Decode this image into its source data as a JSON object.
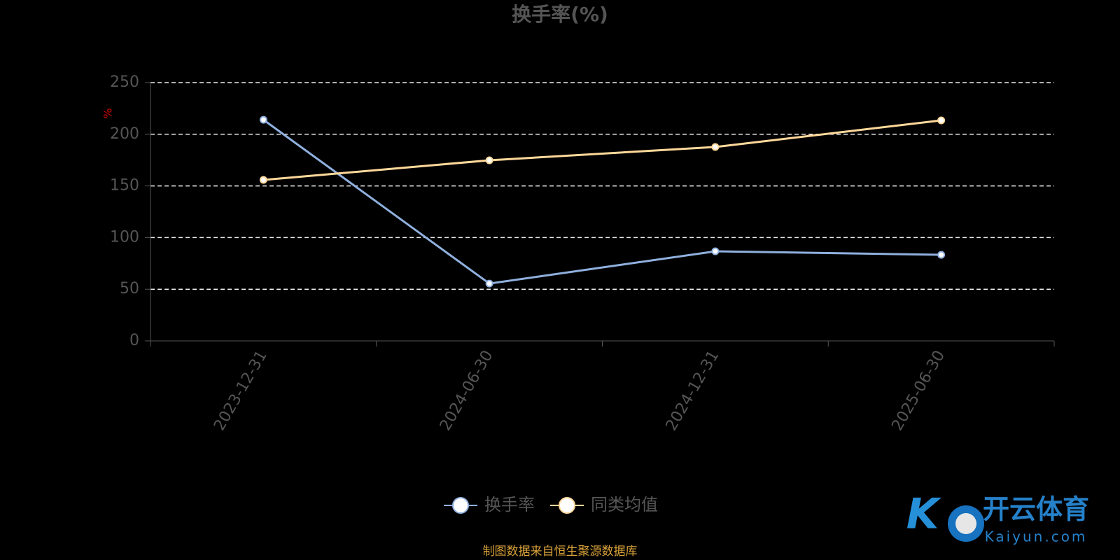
{
  "chart_data": {
    "type": "line",
    "title": "换手率(%)",
    "y_label": "%",
    "categories": [
      "2023-12-31",
      "2024-06-30",
      "2024-12-31",
      "2025-06-30"
    ],
    "series": [
      {
        "name": "换手率",
        "color": "#8fb0de",
        "values": [
          214,
          55.5,
          86.7,
          83.3
        ]
      },
      {
        "name": "同类均值",
        "color": "#ffd89a",
        "values": [
          155.8,
          174.8,
          187.7,
          213.4
        ]
      }
    ],
    "ylim": [
      0,
      250
    ],
    "yticks": [
      0,
      50,
      100,
      150,
      200,
      250
    ],
    "grid": true,
    "legend": "bottom",
    "source": "制图数据来自恒生聚源数据库"
  },
  "watermark": {
    "brand": "开云体育",
    "site": "Kaiyun.com"
  }
}
